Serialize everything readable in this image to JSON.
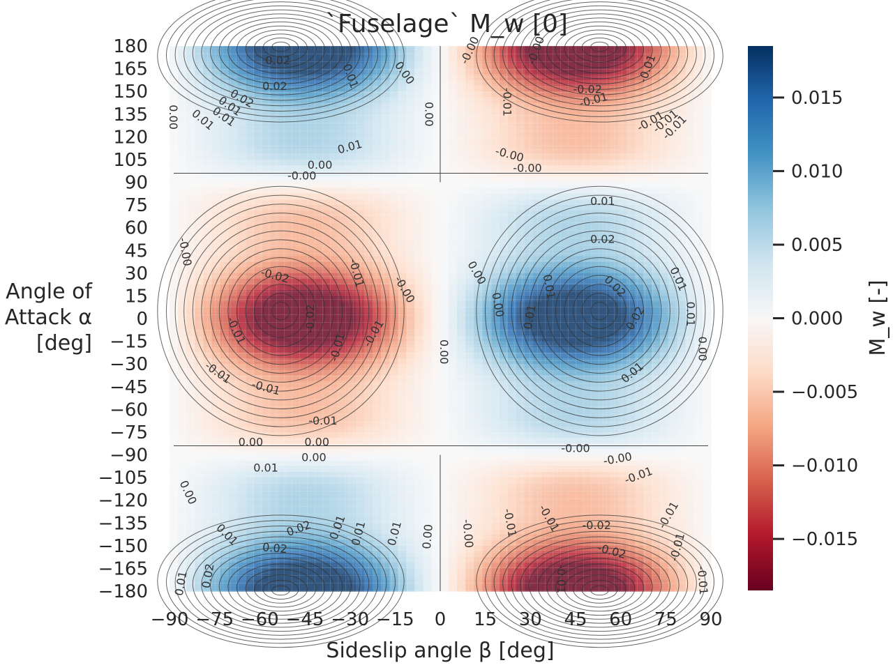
{
  "chart_data": {
    "type": "contour",
    "title": "`Fuselage` M_w [0]",
    "xlabel": "Sideslip angle β [deg]",
    "ylabel_lines": [
      "Angle of",
      "Attack α",
      "[deg]"
    ],
    "colorbar_label": "M_w [-]",
    "colormap": "RdBu",
    "x_range": [
      -90,
      90
    ],
    "y_range": [
      -180,
      180
    ],
    "x_ticks": [
      -90,
      -75,
      -60,
      -45,
      -30,
      -15,
      0,
      15,
      30,
      45,
      60,
      75,
      90
    ],
    "y_ticks": [
      180,
      165,
      150,
      135,
      120,
      105,
      90,
      75,
      60,
      45,
      30,
      15,
      0,
      -15,
      -30,
      -45,
      -60,
      -75,
      -90,
      -105,
      -120,
      -135,
      -150,
      -165,
      -180
    ],
    "x_tick_labels": [
      "−90",
      "−75",
      "−60",
      "−45",
      "−30",
      "−15",
      "0",
      "15",
      "30",
      "45",
      "60",
      "75",
      "90"
    ],
    "y_tick_labels": [
      "180",
      "165",
      "150",
      "135",
      "120",
      "105",
      "90",
      "75",
      "60",
      "45",
      "30",
      "15",
      "0",
      "−15",
      "−30",
      "−45",
      "−60",
      "−75",
      "−90",
      "−105",
      "−120",
      "−135",
      "−150",
      "−165",
      "−180"
    ],
    "colorbar_range": [
      -0.0185,
      0.0185
    ],
    "colorbar_ticks": [
      0.015,
      0.01,
      0.005,
      0.0,
      -0.005,
      -0.01,
      -0.015
    ],
    "colorbar_tick_labels": [
      "0.015",
      "0.010",
      "0.005",
      "0.000",
      "−0.005",
      "−0.010",
      "−0.015"
    ],
    "field_extrema": [
      {
        "beta": -53,
        "alpha": 5,
        "value": -0.0185
      },
      {
        "beta": 53,
        "alpha": 5,
        "value": 0.0185
      },
      {
        "beta": -53,
        "alpha": 175,
        "value": 0.0185
      },
      {
        "beta": 53,
        "alpha": 175,
        "value": -0.0185
      },
      {
        "beta": -53,
        "alpha": -175,
        "value": 0.0185
      },
      {
        "beta": 53,
        "alpha": -175,
        "value": -0.0185
      }
    ],
    "contour_labels": [
      {
        "text": "0.02",
        "beta": -54,
        "alpha": 170,
        "rot": 0
      },
      {
        "text": "0.02",
        "beta": -55,
        "alpha": 153,
        "rot": 0
      },
      {
        "text": "0.02",
        "beta": -66,
        "alpha": 145,
        "rot": 30
      },
      {
        "text": "0.01",
        "beta": -70,
        "alpha": 140,
        "rot": 35
      },
      {
        "text": "0.01",
        "beta": -72,
        "alpha": 133,
        "rot": 35
      },
      {
        "text": "0.01",
        "beta": -79,
        "alpha": 131,
        "rot": 40
      },
      {
        "text": "0.01",
        "beta": -30,
        "alpha": 113,
        "rot": -15
      },
      {
        "text": "0.01",
        "beta": -30,
        "alpha": 160,
        "rot": 70
      },
      {
        "text": "0.00",
        "beta": -12,
        "alpha": 162,
        "rot": 55
      },
      {
        "text": "0.00",
        "beta": -4,
        "alpha": 135,
        "rot": 90
      },
      {
        "text": "0.00",
        "beta": -40,
        "alpha": 101,
        "rot": 0
      },
      {
        "text": "0.00",
        "beta": -89,
        "alpha": 133,
        "rot": 90
      },
      {
        "text": "-0.00",
        "beta": 10,
        "alpha": 177,
        "rot": -65
      },
      {
        "text": "-0.00",
        "beta": 32,
        "alpha": 177,
        "rot": -70
      },
      {
        "text": "-0.01",
        "beta": 69,
        "alpha": 165,
        "rot": -70
      },
      {
        "text": "-0.02",
        "beta": 49,
        "alpha": 151,
        "rot": 0
      },
      {
        "text": "-0.01",
        "beta": 51,
        "alpha": 144,
        "rot": -15
      },
      {
        "text": "-0.01",
        "beta": 22,
        "alpha": 143,
        "rot": 90
      },
      {
        "text": "-0.01",
        "beta": 70,
        "alpha": 130,
        "rot": -30
      },
      {
        "text": "-0.01",
        "beta": 75,
        "alpha": 130,
        "rot": -40
      },
      {
        "text": "-0.01",
        "beta": 78,
        "alpha": 126,
        "rot": -45
      },
      {
        "text": "-0.00",
        "beta": 23,
        "alpha": 108,
        "rot": 15
      },
      {
        "text": "-0.00",
        "beta": 29,
        "alpha": 99,
        "rot": 0
      },
      {
        "text": "-0.00",
        "beta": -46,
        "alpha": 94,
        "rot": 0
      },
      {
        "text": "-0.00",
        "beta": -85,
        "alpha": 44,
        "rot": 80
      },
      {
        "text": "-0.02",
        "beta": -55,
        "alpha": 28,
        "rot": 15
      },
      {
        "text": "-0.01",
        "beta": -28,
        "alpha": 30,
        "rot": 75
      },
      {
        "text": "-0.00",
        "beta": -12,
        "alpha": 19,
        "rot": 60
      },
      {
        "text": "-0.02",
        "beta": -43,
        "alpha": 0,
        "rot": -90
      },
      {
        "text": "-0.01",
        "beta": -68,
        "alpha": -8,
        "rot": 65
      },
      {
        "text": "-0.01",
        "beta": -34,
        "alpha": -19,
        "rot": -75
      },
      {
        "text": "-0.01",
        "beta": -22,
        "alpha": -10,
        "rot": -60
      },
      {
        "text": "-0.01",
        "beta": -74,
        "alpha": -36,
        "rot": 35
      },
      {
        "text": "-0.01",
        "beta": -58,
        "alpha": -46,
        "rot": 15
      },
      {
        "text": "-0.01",
        "beta": -39,
        "alpha": -68,
        "rot": 0
      },
      {
        "text": "0.00",
        "beta": -41,
        "alpha": -82,
        "rot": 0
      },
      {
        "text": "0.00",
        "beta": 1,
        "alpha": -22,
        "rot": 90
      },
      {
        "text": "0.00",
        "beta": 12,
        "alpha": 30,
        "rot": 60
      },
      {
        "text": "0.00",
        "beta": 19,
        "alpha": 9,
        "rot": 80
      },
      {
        "text": "0.01",
        "beta": 54,
        "alpha": 77,
        "rot": 0
      },
      {
        "text": "0.02",
        "beta": 54,
        "alpha": 52,
        "rot": 0
      },
      {
        "text": "0.01",
        "beta": 36,
        "alpha": 21,
        "rot": 80
      },
      {
        "text": "0.01",
        "beta": 30,
        "alpha": 1,
        "rot": -80
      },
      {
        "text": "0.02",
        "beta": 58,
        "alpha": 21,
        "rot": 45
      },
      {
        "text": "0.02",
        "beta": 65,
        "alpha": 0,
        "rot": -60
      },
      {
        "text": "0.01",
        "beta": 64,
        "alpha": -36,
        "rot": -40
      },
      {
        "text": "0.01",
        "beta": 79,
        "alpha": 26,
        "rot": 65
      },
      {
        "text": "0.01",
        "beta": 83,
        "alpha": 3,
        "rot": 90
      },
      {
        "text": "0.00",
        "beta": 87,
        "alpha": -20,
        "rot": 90
      },
      {
        "text": "0.00",
        "beta": -63,
        "alpha": -82,
        "rot": 0
      },
      {
        "text": "-0.00",
        "beta": 45,
        "alpha": -86,
        "rot": 0
      },
      {
        "text": "0.00",
        "beta": -42,
        "alpha": -92,
        "rot": 0
      },
      {
        "text": "-0.00",
        "beta": 59,
        "alpha": -93,
        "rot": -10
      },
      {
        "text": "0.01",
        "beta": -58,
        "alpha": -99,
        "rot": 0
      },
      {
        "text": "-0.01",
        "beta": 66,
        "alpha": -104,
        "rot": -20
      },
      {
        "text": "0.00",
        "beta": -84,
        "alpha": -115,
        "rot": 65
      },
      {
        "text": "0.01",
        "beta": -71,
        "alpha": -143,
        "rot": 45
      },
      {
        "text": "0.02",
        "beta": -47,
        "alpha": -139,
        "rot": -20
      },
      {
        "text": "0.01",
        "beta": -34,
        "alpha": -138,
        "rot": -70
      },
      {
        "text": "0.01",
        "beta": -27,
        "alpha": -142,
        "rot": -75
      },
      {
        "text": "0.01",
        "beta": -15,
        "alpha": -142,
        "rot": -75
      },
      {
        "text": "0.00",
        "beta": -4,
        "alpha": -144,
        "rot": -85
      },
      {
        "text": "0.02",
        "beta": -55,
        "alpha": -152,
        "rot": 5
      },
      {
        "text": "0.02",
        "beta": -77,
        "alpha": -170,
        "rot": -80
      },
      {
        "text": "0.01",
        "beta": -86,
        "alpha": -175,
        "rot": -80
      },
      {
        "text": "-0.00",
        "beta": 9,
        "alpha": -142,
        "rot": 85
      },
      {
        "text": "-0.01",
        "beta": 23,
        "alpha": -135,
        "rot": 80
      },
      {
        "text": "-0.01",
        "beta": 36,
        "alpha": -132,
        "rot": 60
      },
      {
        "text": "-0.02",
        "beta": 52,
        "alpha": -137,
        "rot": 0
      },
      {
        "text": "-0.02",
        "beta": 57,
        "alpha": -154,
        "rot": 15
      },
      {
        "text": "-0.01",
        "beta": 76,
        "alpha": -130,
        "rot": -60
      },
      {
        "text": "-0.01",
        "beta": 79,
        "alpha": -151,
        "rot": -75
      },
      {
        "text": "-0.01",
        "beta": 40,
        "alpha": -172,
        "rot": 90
      },
      {
        "text": "-0.01",
        "beta": 87,
        "alpha": -173,
        "rot": 85
      }
    ]
  }
}
